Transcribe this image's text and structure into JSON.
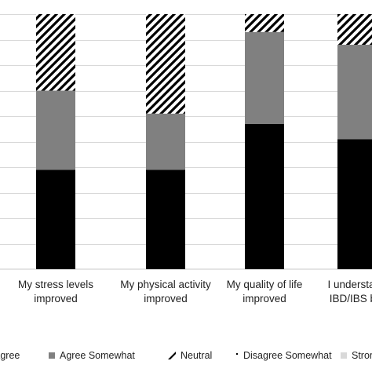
{
  "chart_data": {
    "type": "bar",
    "stacked": true,
    "orientation": "vertical",
    "percent": true,
    "ylim": [
      0,
      100
    ],
    "grid": true,
    "legend_position": "bottom",
    "title": "",
    "xlabel": "",
    "ylabel": "",
    "categories": [
      "My stress levels improved",
      "My physical activity improved",
      "My quality of life improved",
      "I understand my IBD/IBS better"
    ],
    "category_lines": [
      [
        "My stress levels",
        "improved"
      ],
      [
        "My physical activity",
        "improved"
      ],
      [
        "My quality of life",
        "improved"
      ],
      [
        "I understand",
        "IBD/IBS bet"
      ]
    ],
    "series": [
      {
        "name": "Agree",
        "values": [
          39,
          39,
          57,
          51
        ],
        "fill": "#000000",
        "pattern": "solid"
      },
      {
        "name": "Agree Somewhat",
        "values": [
          31,
          22,
          36,
          37
        ],
        "fill": "#808080",
        "pattern": "solid"
      },
      {
        "name": "Neutral",
        "values": [
          30,
          39,
          7,
          12
        ],
        "fill": "#000000",
        "pattern": "diagonal-stripes"
      },
      {
        "name": "Disagree Somewhat",
        "values": [
          0,
          0,
          0,
          0
        ],
        "fill": "#000000",
        "pattern": "dotted"
      },
      {
        "name": "Stron",
        "values": [
          0,
          0,
          0,
          0
        ],
        "fill": "#d9d9d9",
        "pattern": "solid"
      }
    ]
  }
}
